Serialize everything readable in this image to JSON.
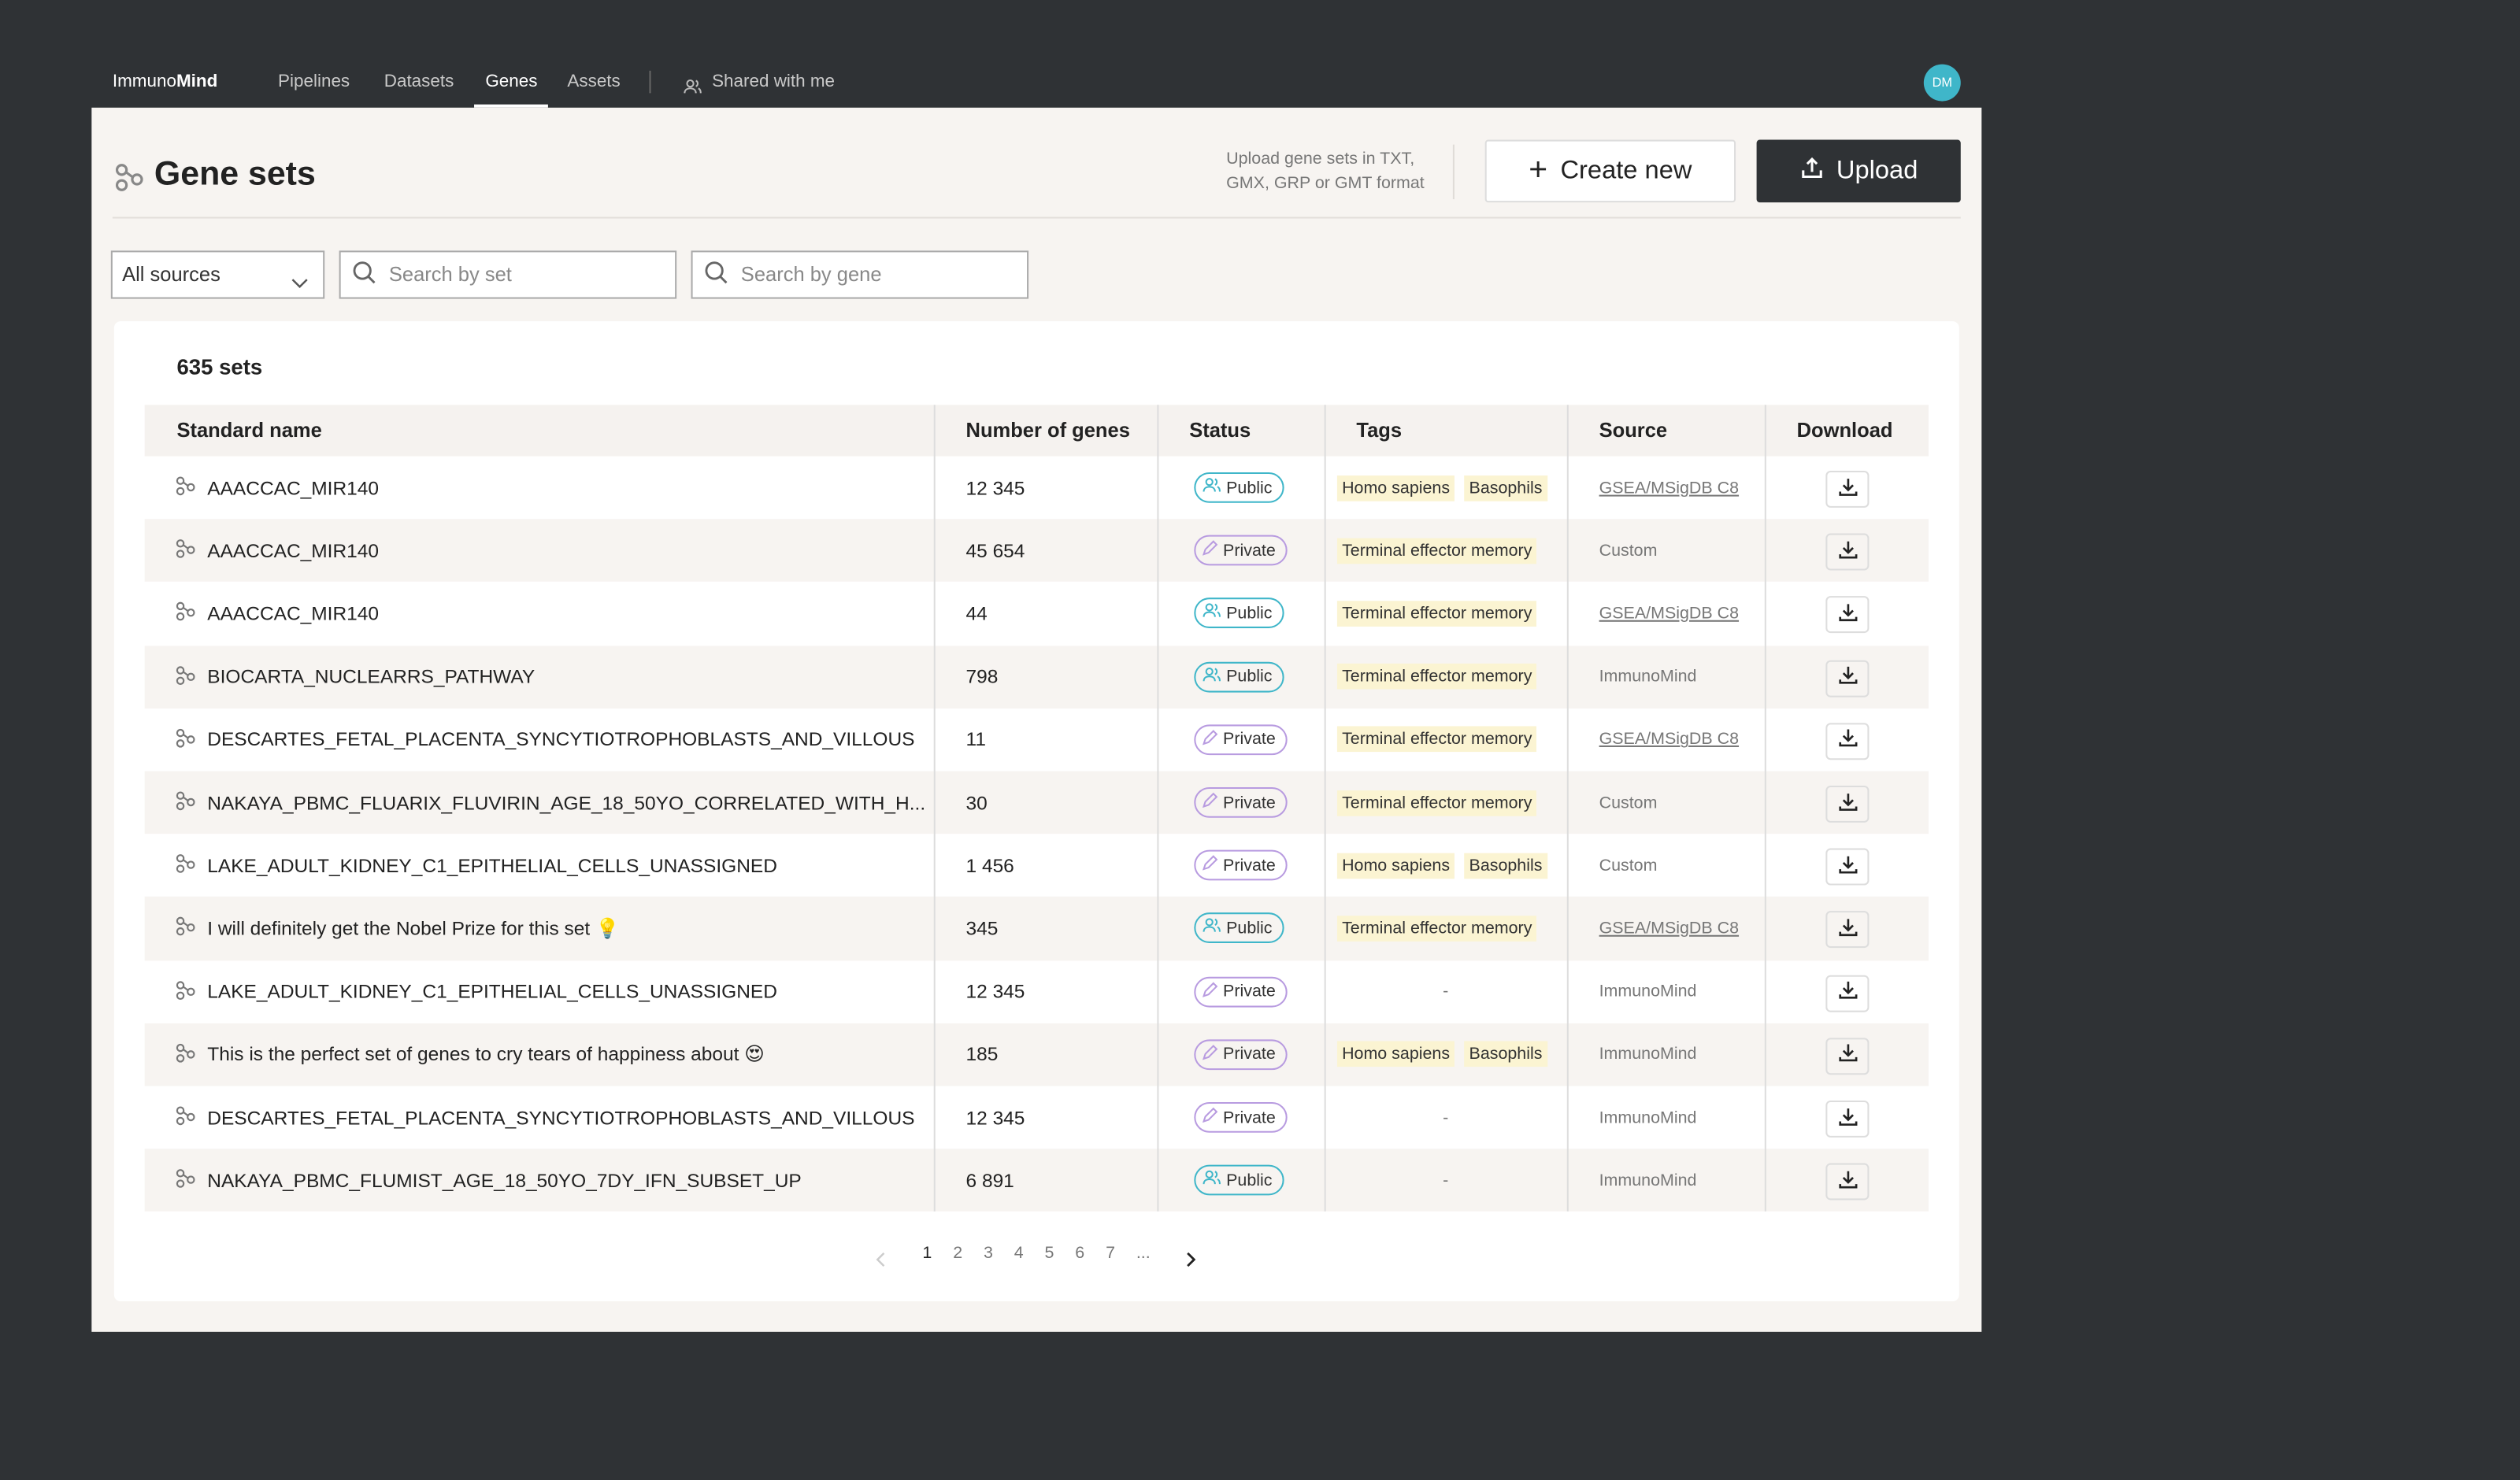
{
  "nav": {
    "brand_prefix": "Immuno",
    "brand_suffix": "Mind",
    "items": [
      "Pipelines",
      "Datasets",
      "Genes",
      "Assets"
    ],
    "active_item": "Genes",
    "shared": "Shared with me",
    "avatar": "DM"
  },
  "header": {
    "title": "Gene sets",
    "upload_hint": [
      "Upload gene sets in TXT,",
      "GMX, GRP or GMT format"
    ],
    "create_button": "Create new",
    "upload_button": "Upload"
  },
  "filters": {
    "source_select": "All sources",
    "search_set": "Search by set",
    "search_gene": "Search by gene"
  },
  "table": {
    "count": "635 sets",
    "empty_tag": "-",
    "columns": [
      "Standard name",
      "Number of genes",
      "Status",
      "Tags",
      "Source",
      "Download"
    ],
    "rows": [
      {
        "name": "AAACCAC_MIR140",
        "genes": "12 345",
        "status": "Public",
        "tags": [
          "Homo sapiens",
          "Basophils"
        ],
        "source": "GSEA/MSigDB C8",
        "source_link": true
      },
      {
        "name": "AAACCAC_MIR140",
        "genes": "45 654",
        "status": "Private",
        "tags": [
          "Terminal effector memory"
        ],
        "source": "Custom",
        "source_link": false
      },
      {
        "name": "AAACCAC_MIR140",
        "genes": "44",
        "status": "Public",
        "tags": [
          "Terminal effector memory"
        ],
        "source": "GSEA/MSigDB C8",
        "source_link": true
      },
      {
        "name": "BIOCARTA_NUCLEARRS_PATHWAY",
        "genes": "798",
        "status": "Public",
        "tags": [
          "Terminal effector memory"
        ],
        "source": "ImmunoMind",
        "source_link": false
      },
      {
        "name": "DESCARTES_FETAL_PLACENTA_SYNCYTIOTROPHOBLASTS_AND_VILLOUS",
        "genes": "11",
        "status": "Private",
        "tags": [
          "Terminal effector memory"
        ],
        "source": "GSEA/MSigDB C8",
        "source_link": true
      },
      {
        "name": "NAKAYA_PBMC_FLUARIX_FLUVIRIN_AGE_18_50YO_CORRELATED_WITH_H...",
        "genes": "30",
        "status": "Private",
        "tags": [
          "Terminal effector memory"
        ],
        "source": "Custom",
        "source_link": false
      },
      {
        "name": "LAKE_ADULT_KIDNEY_C1_EPITHELIAL_CELLS_UNASSIGNED",
        "genes": "1 456",
        "status": "Private",
        "tags": [
          "Homo sapiens",
          "Basophils"
        ],
        "source": "Custom",
        "source_link": false
      },
      {
        "name": "I will definitely get the Nobel Prize for this set 💡",
        "genes": "345",
        "status": "Public",
        "tags": [
          "Terminal effector memory"
        ],
        "source": "GSEA/MSigDB C8",
        "source_link": true
      },
      {
        "name": "LAKE_ADULT_KIDNEY_C1_EPITHELIAL_CELLS_UNASSIGNED",
        "genes": "12 345",
        "status": "Private",
        "tags": [],
        "source": "ImmunoMind",
        "source_link": false
      },
      {
        "name": "This is the perfect set of genes to cry tears of happiness about 😍",
        "genes": "185",
        "status": "Private",
        "tags": [
          "Homo sapiens",
          "Basophils"
        ],
        "source": "ImmunoMind",
        "source_link": false
      },
      {
        "name": "DESCARTES_FETAL_PLACENTA_SYNCYTIOTROPHOBLASTS_AND_VILLOUS",
        "genes": "12 345",
        "status": "Private",
        "tags": [],
        "source": "ImmunoMind",
        "source_link": false
      },
      {
        "name": "NAKAYA_PBMC_FLUMIST_AGE_18_50YO_7DY_IFN_SUBSET_UP",
        "genes": "6 891",
        "status": "Public",
        "tags": [],
        "source": "ImmunoMind",
        "source_link": false
      }
    ]
  },
  "pagination": {
    "pages": [
      "1",
      "2",
      "3",
      "4",
      "5",
      "6",
      "7",
      "..."
    ],
    "current": "1"
  }
}
